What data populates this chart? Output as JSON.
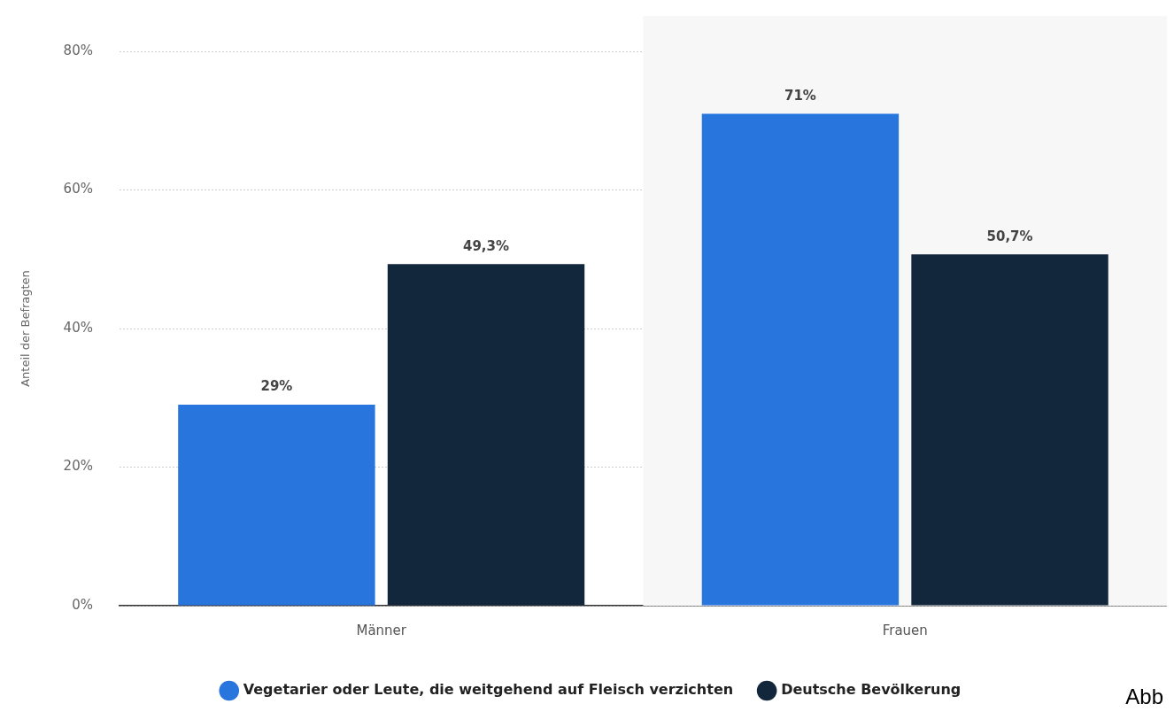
{
  "chart_data": {
    "type": "bar",
    "ylabel": "Anteil der Befragten",
    "categories": [
      "Männer",
      "Frauen"
    ],
    "series": [
      {
        "name": "Vegetarier oder Leute, die weitgehend auf Fleisch verzichten",
        "color": "#2876dd",
        "values": [
          29,
          71
        ],
        "value_labels": [
          "29%",
          "71%"
        ]
      },
      {
        "name": "Deutsche Bevölkerung",
        "color": "#13273c",
        "values": [
          49.3,
          50.7
        ],
        "value_labels": [
          "49,3%",
          "50,7%"
        ]
      }
    ],
    "ylim": [
      0,
      80
    ],
    "yticks": [
      {
        "value": 0,
        "label": "0%"
      },
      {
        "value": 20,
        "label": "20%"
      },
      {
        "value": 40,
        "label": "40%"
      },
      {
        "value": 60,
        "label": "60%"
      },
      {
        "value": 80,
        "label": "80%"
      }
    ],
    "grid": "y",
    "legend": "bottom",
    "bands": [
      {
        "axis": "x",
        "from": "Frauen",
        "to": "Frauen",
        "color": "#f7f7f7"
      }
    ],
    "annotations": [
      "Abb"
    ]
  }
}
